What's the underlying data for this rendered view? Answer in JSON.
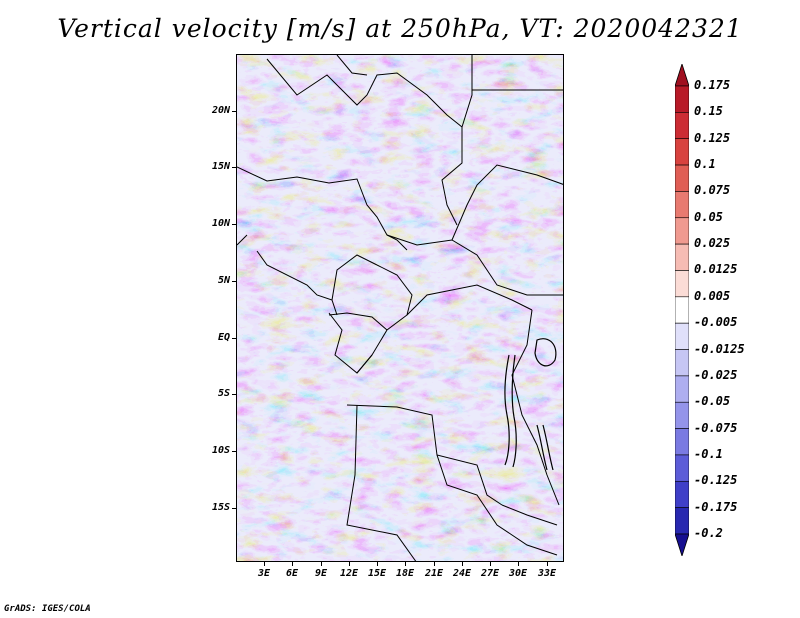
{
  "title": "Vertical velocity [m/s] at 250hPa, VT: 2020042321",
  "credit": "GrADS: IGES/COLA",
  "lat_labels": [
    "20N",
    "15N",
    "10N",
    "5N",
    "EQ",
    "5S",
    "10S",
    "15S"
  ],
  "lon_labels": [
    "3E",
    "6E",
    "9E",
    "12E",
    "15E",
    "18E",
    "21E",
    "24E",
    "27E",
    "30E",
    "33E"
  ],
  "colorbar": {
    "labels": [
      "0.175",
      "0.15",
      "0.125",
      "0.1",
      "0.075",
      "0.05",
      "0.025",
      "0.0125",
      "0.005",
      "-0.005",
      "-0.0125",
      "-0.025",
      "-0.05",
      "-0.075",
      "-0.1",
      "-0.125",
      "-0.175",
      "-0.2"
    ],
    "colors": [
      "#a01020",
      "#b81a28",
      "#cc2c34",
      "#d8423f",
      "#e05e55",
      "#e87a70",
      "#f09a90",
      "#f6bcb4",
      "#fbdcd6",
      "#ffffff",
      "#e0e0fa",
      "#c6c6f4",
      "#aeaef0",
      "#9494ea",
      "#7a7ae2",
      "#5c5cd8",
      "#3f3fc8",
      "#2828b0",
      "#160f90"
    ]
  }
}
